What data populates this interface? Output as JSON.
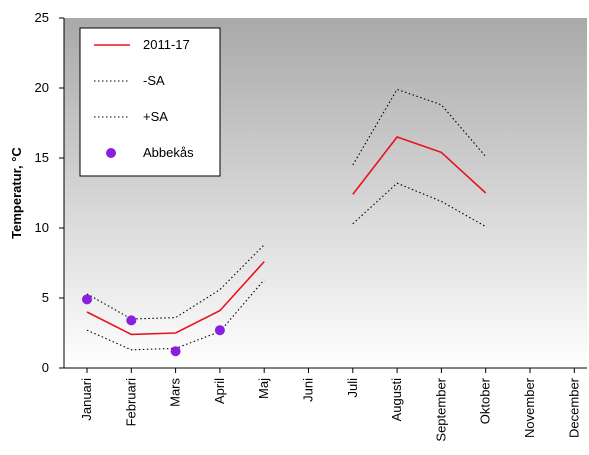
{
  "chart_data": {
    "type": "line",
    "ylabel": "Temperatur, °C",
    "xlabel": "",
    "ylim": [
      0,
      25
    ],
    "yticks": [
      0,
      5,
      10,
      15,
      20,
      25
    ],
    "categories": [
      "Januari",
      "Februari",
      "Mars",
      "April",
      "Maj",
      "Juni",
      "Juli",
      "Augusti",
      "September",
      "Oktober",
      "November",
      "December"
    ],
    "background": "gray-to-white vertical gradient",
    "legend_position": "top-left",
    "series": [
      {
        "name": "2011-17",
        "style": "solid-line",
        "color": "#e8141c",
        "values": [
          4.0,
          2.4,
          2.5,
          4.1,
          7.6,
          null,
          12.4,
          16.5,
          15.4,
          12.5,
          null,
          null
        ]
      },
      {
        "name": "-SA",
        "style": "dotted-line",
        "color": "#000000",
        "values": [
          2.7,
          1.3,
          1.4,
          2.6,
          6.3,
          null,
          10.3,
          13.2,
          11.9,
          10.1,
          null,
          null
        ]
      },
      {
        "name": "+SA",
        "style": "dotted-line",
        "color": "#000000",
        "values": [
          5.3,
          3.5,
          3.6,
          5.6,
          8.8,
          null,
          14.5,
          19.9,
          18.8,
          15.1,
          null,
          null
        ]
      },
      {
        "name": "Abbekås",
        "style": "points",
        "color": "#8a1fe0",
        "values": [
          4.9,
          3.4,
          1.2,
          2.7,
          null,
          null,
          null,
          null,
          null,
          null,
          null,
          null
        ]
      }
    ]
  }
}
